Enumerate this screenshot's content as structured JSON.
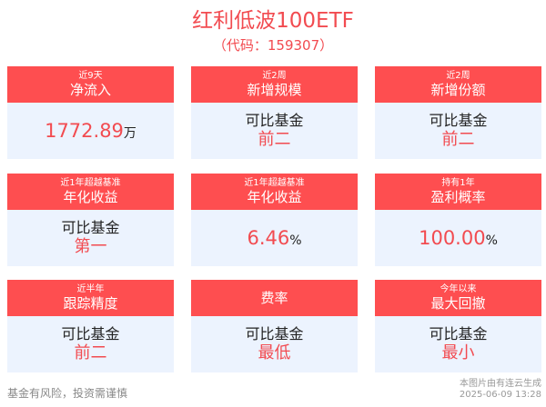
{
  "title": "红利低波100ETF",
  "code": "（代码：159307）",
  "cards": [
    {
      "sub": "近9天",
      "main": "净流入",
      "value": "1772.89",
      "unit": "万"
    },
    {
      "sub": "近2周",
      "main": "新增规模",
      "line1": "可比基金",
      "line2": "前二"
    },
    {
      "sub": "近2周",
      "main": "新增份额",
      "line1": "可比基金",
      "line2": "前二"
    },
    {
      "sub": "近1年超越基准",
      "main": "年化收益",
      "line1": "可比基金",
      "line2": "第一"
    },
    {
      "sub": "近1年超越基准",
      "main": "年化收益",
      "value": "6.46",
      "unit": "%"
    },
    {
      "sub": "持有1年",
      "main": "盈利概率",
      "value": "100.00",
      "unit": "%"
    },
    {
      "sub": "近半年",
      "main": "跟踪精度",
      "line1": "可比基金",
      "line2": "前二"
    },
    {
      "sub": "",
      "main": "费率",
      "line1": "可比基金",
      "line2": "最低"
    },
    {
      "sub": "今年以来",
      "main": "最大回撤",
      "line1": "可比基金",
      "line2": "最小"
    }
  ],
  "footer": {
    "disclaimer": "基金有风险，投资需谨慎",
    "source": "本图片由有连云生成",
    "timestamp": "2025-06-09 13:28"
  },
  "colors": {
    "accent": "#fe4e50",
    "body_bg": "#ecf3fe",
    "text_red": "#f24b50"
  }
}
